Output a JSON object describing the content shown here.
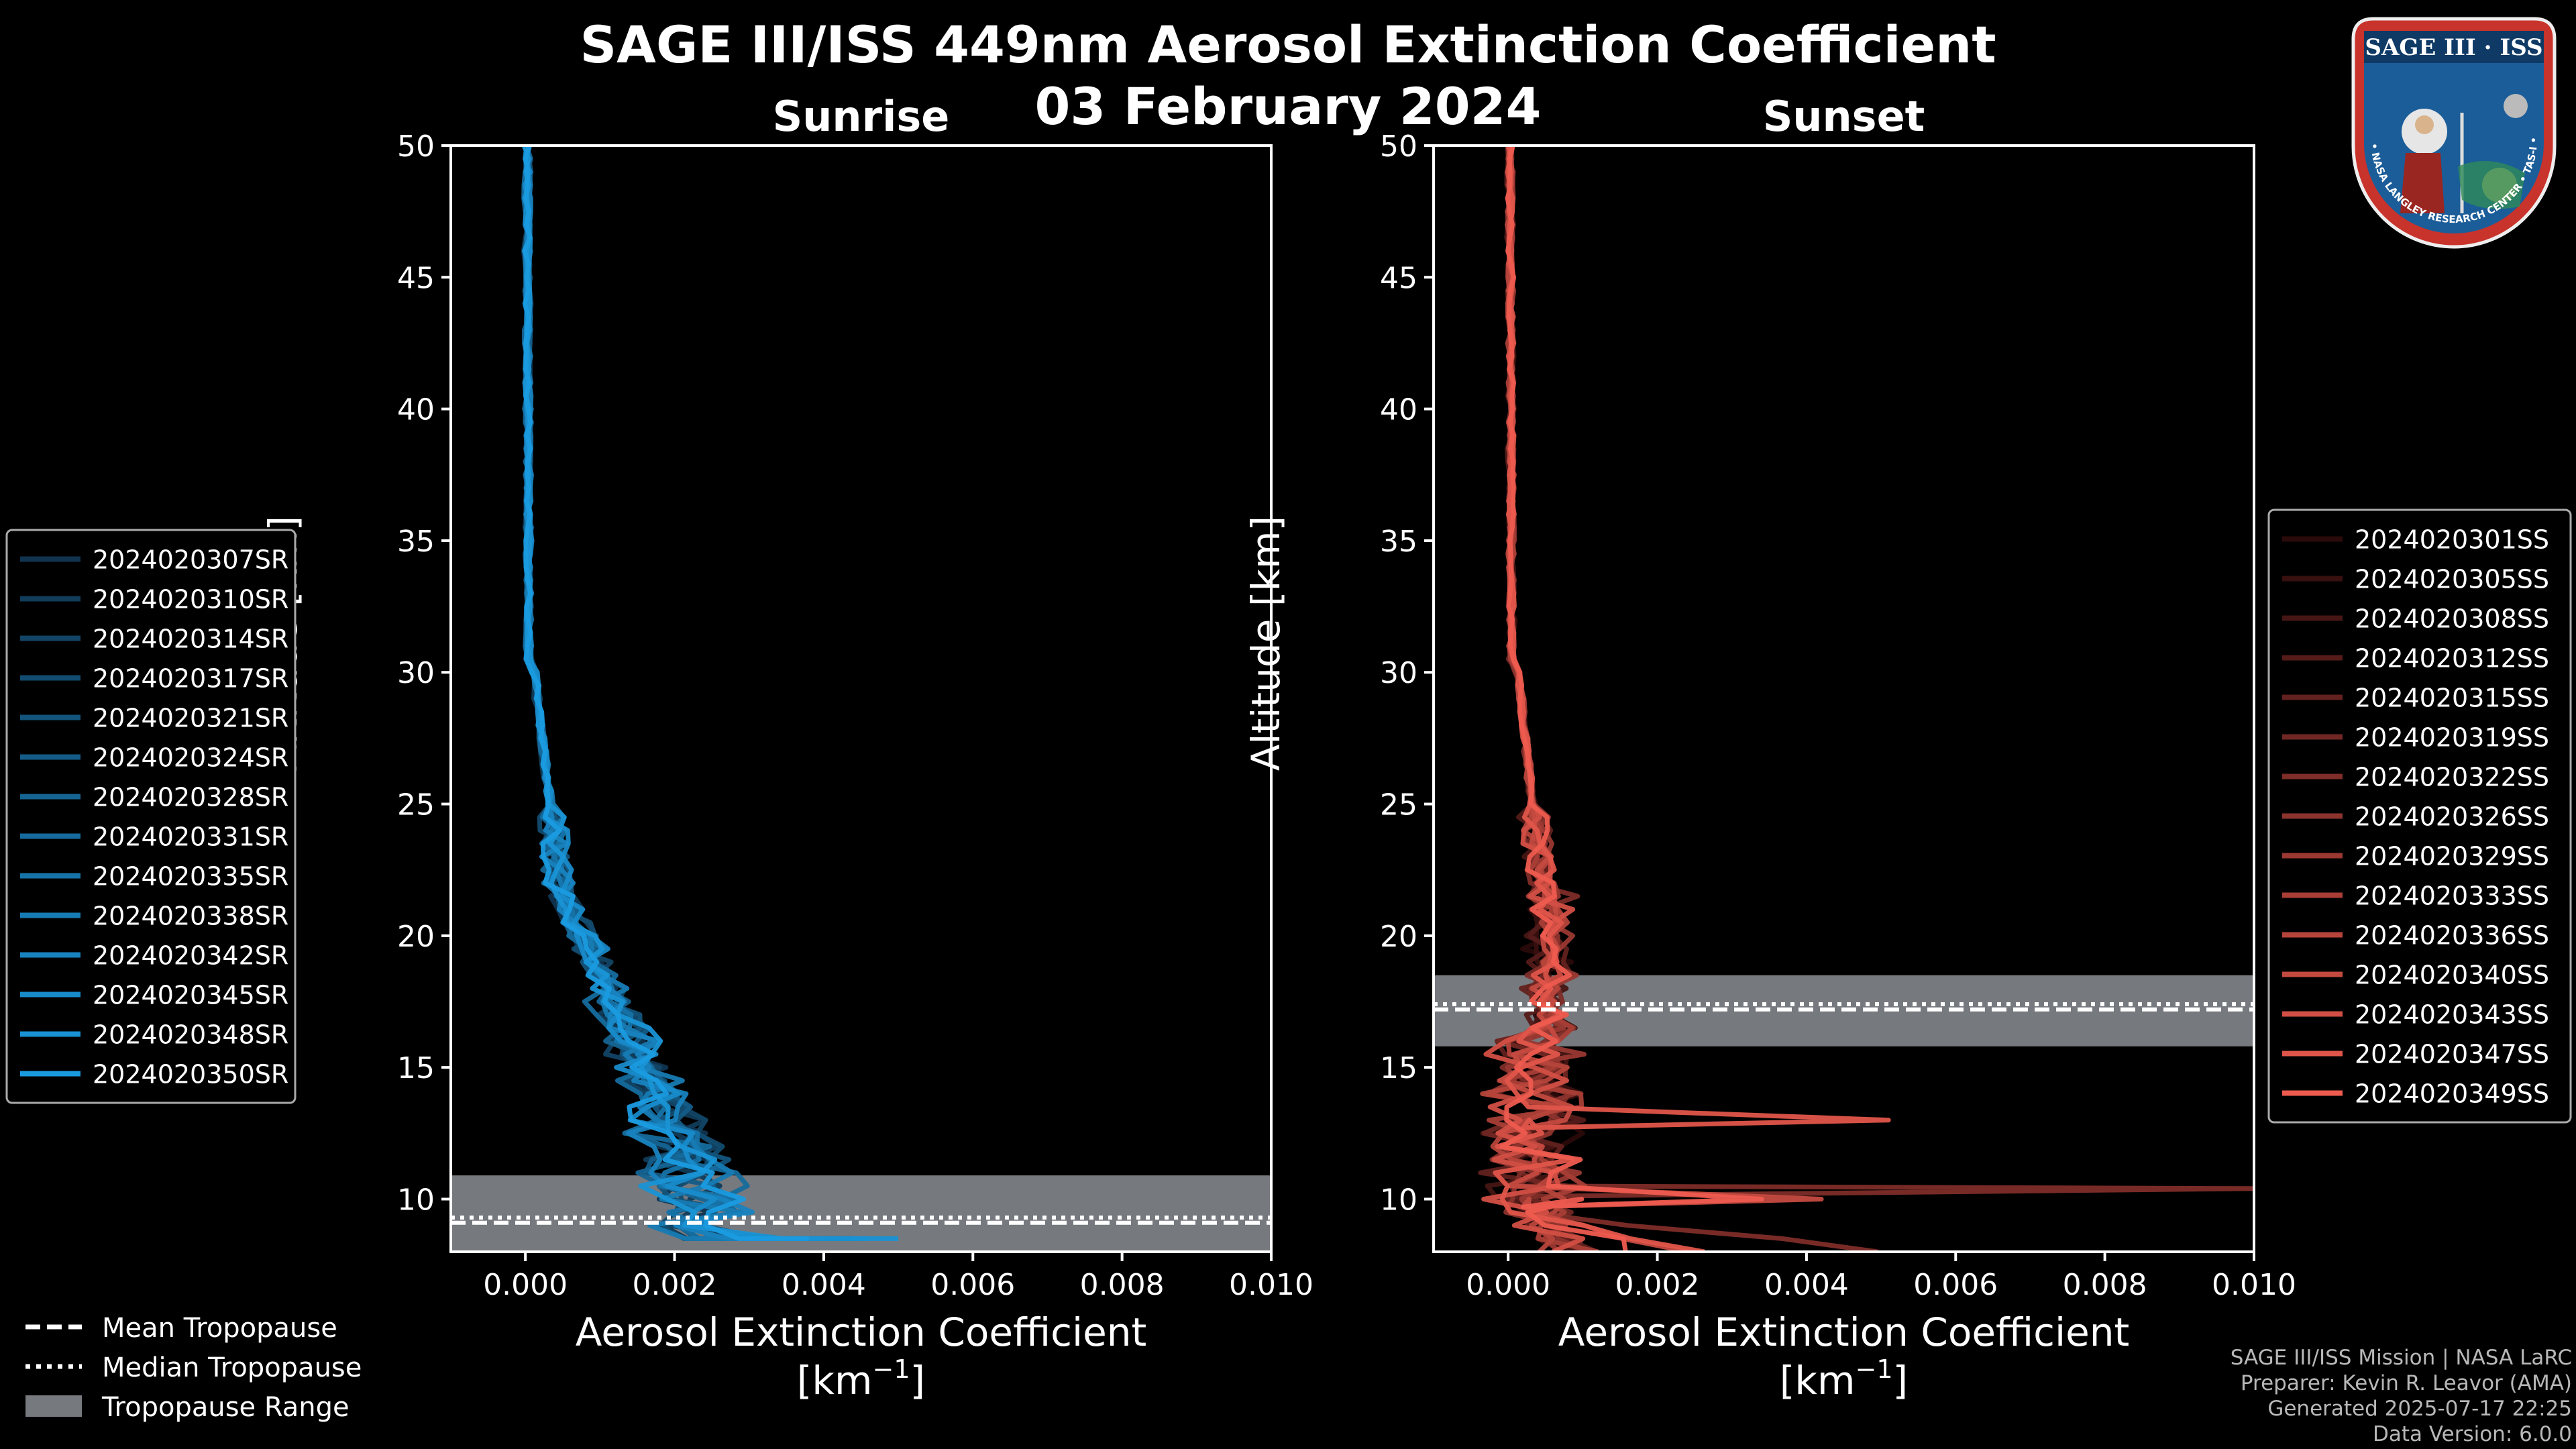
{
  "title": {
    "line1": "SAGE III/ISS 449nm Aerosol Extinction Coefficient",
    "line2": "03 February 2024"
  },
  "logo": {
    "name": "SAGE III · ISS",
    "ring_text": "BALL • NASA LANGLEY RESEARCH CENTER • TAS-I • ESA"
  },
  "footer": {
    "line1": "SAGE III/ISS Mission | NASA LaRC",
    "line2": "Preparer: Kevin R. Leavor (AMA)",
    "line3": "Generated 2025-07-17 22:25",
    "line4": "Data Version: 6.0.0"
  },
  "bottom_legend": {
    "mean": "Mean Tropopause",
    "median": "Median Tropopause",
    "range": "Tropopause Range"
  },
  "chart_data": [
    {
      "type": "line",
      "title": "Sunrise",
      "xlabel": "Aerosol Extinction Coefficient",
      "xunit": "[km",
      "xunit_sup": "−1",
      "xunit_close": "]",
      "ylabel": "Altitude [km]",
      "xlim": [
        -0.001,
        0.01
      ],
      "ylim": [
        8,
        50
      ],
      "xticks": [
        "0.000",
        "0.002",
        "0.004",
        "0.006",
        "0.008",
        "0.010"
      ],
      "yticks": [
        "10",
        "15",
        "20",
        "25",
        "30",
        "35",
        "40",
        "45",
        "50"
      ],
      "tropopause": {
        "mean": 9.1,
        "median": 9.3,
        "min": 8.0,
        "max": 10.9
      },
      "color_dark": "#10344f",
      "color_light": "#1a9be0",
      "series": [
        {
          "name": "2024020307SR",
          "surface_extinction": 0.0022
        },
        {
          "name": "2024020310SR",
          "surface_extinction": 0.003
        },
        {
          "name": "2024020314SR",
          "surface_extinction": 0.0044
        },
        {
          "name": "2024020317SR",
          "surface_extinction": 0.0028
        },
        {
          "name": "2024020321SR",
          "surface_extinction": 0.0026
        },
        {
          "name": "2024020324SR",
          "surface_extinction": 0.004
        },
        {
          "name": "2024020328SR",
          "surface_extinction": 0.0031
        },
        {
          "name": "2024020331SR",
          "surface_extinction": 0.0025
        },
        {
          "name": "2024020335SR",
          "surface_extinction": 0.0035
        },
        {
          "name": "2024020338SR",
          "surface_extinction": 0.0027
        },
        {
          "name": "2024020342SR",
          "surface_extinction": 0.0046
        },
        {
          "name": "2024020345SR",
          "surface_extinction": 0.0033
        },
        {
          "name": "2024020348SR",
          "surface_extinction": 0.005
        },
        {
          "name": "2024020350SR",
          "surface_extinction": 0.0038
        }
      ]
    },
    {
      "type": "line",
      "title": "Sunset",
      "xlabel": "Aerosol Extinction Coefficient",
      "xunit": "[km",
      "xunit_sup": "−1",
      "xunit_close": "]",
      "ylabel": "Altitude [km]",
      "xlim": [
        -0.001,
        0.01
      ],
      "ylim": [
        8,
        50
      ],
      "xticks": [
        "0.000",
        "0.002",
        "0.004",
        "0.006",
        "0.008",
        "0.010"
      ],
      "yticks": [
        "10",
        "15",
        "20",
        "25",
        "30",
        "35",
        "40",
        "45",
        "50"
      ],
      "tropopause": {
        "mean": 17.2,
        "median": 17.4,
        "min": 15.8,
        "max": 18.5
      },
      "color_dark": "#2a0a0a",
      "color_light": "#ee5b4f",
      "series": [
        {
          "name": "2024020301SS",
          "surface_extinction": 0.0012
        },
        {
          "name": "2024020305SS",
          "surface_extinction": 0.001
        },
        {
          "name": "2024020308SS",
          "surface_extinction": 0.0015
        },
        {
          "name": "2024020312SS",
          "surface_extinction": 0.0009
        },
        {
          "name": "2024020315SS",
          "surface_extinction": 0.0013
        },
        {
          "name": "2024020319SS",
          "surface_extinction": 0.0011
        },
        {
          "name": "2024020322SS",
          "surface_extinction": 0.01
        },
        {
          "name": "2024020326SS",
          "surface_extinction": 0.0014
        },
        {
          "name": "2024020329SS",
          "surface_extinction": 0.001
        },
        {
          "name": "2024020333SS",
          "surface_extinction": 0.0016
        },
        {
          "name": "2024020336SS",
          "surface_extinction": 0.0012
        },
        {
          "name": "2024020340SS",
          "surface_extinction": 0.0042
        },
        {
          "name": "2024020343SS",
          "surface_extinction": 0.0013
        },
        {
          "name": "2024020347SS",
          "surface_extinction": 0.0051
        },
        {
          "name": "2024020349SS",
          "surface_extinction": 0.0034
        }
      ]
    }
  ]
}
